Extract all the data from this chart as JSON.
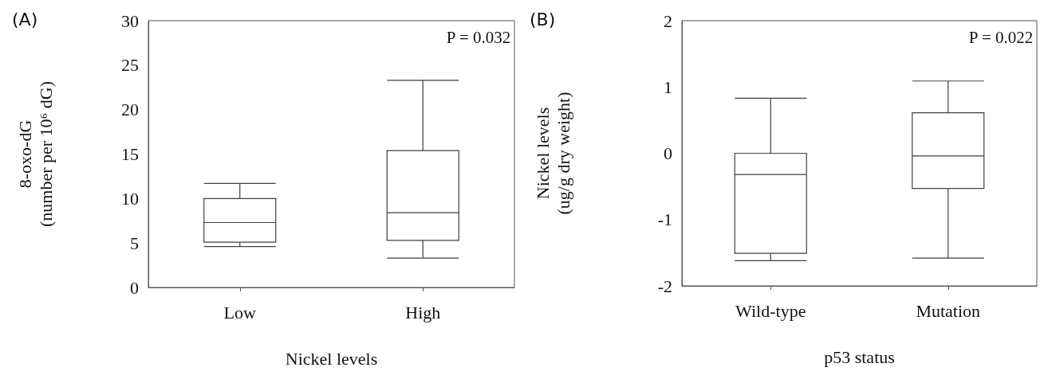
{
  "chart_data": [
    {
      "type": "box",
      "title": "(A)",
      "xlabel": "Nickel levels",
      "ylabel": "8-oxo-dG\n(number per 10⁶ dG)",
      "categories": [
        "Low",
        "High"
      ],
      "color": "#404040",
      "boxes": [
        {
          "low": 4.6,
          "q1": 5.1,
          "median": 7.3,
          "q3": 10,
          "high": 11.7
        },
        {
          "low": 3.3,
          "q1": 5.3,
          "median": 8.4,
          "q3": 15.4,
          "high": 23.3
        }
      ],
      "ylim": [
        0,
        30
      ],
      "yticks": [
        0,
        5,
        10,
        15,
        20,
        25,
        30
      ],
      "grid": false,
      "annotations": [
        "P = 0.032"
      ]
    },
    {
      "type": "box",
      "title": "(B)",
      "xlabel": "p53 status",
      "ylabel": "Nickel levels\n(ug/g dry weight)",
      "categories": [
        "Wild-type",
        "Mutation"
      ],
      "color": "#404040",
      "boxes": [
        {
          "low": -1.62,
          "q1": -1.51,
          "median": -0.32,
          "q3": 0.0,
          "high": 0.83
        },
        {
          "low": -1.58,
          "q1": -0.53,
          "median": -0.04,
          "q3": 0.61,
          "high": 1.09
        }
      ],
      "ylim": [
        -2,
        2
      ],
      "yticks": [
        -2,
        -1,
        0,
        1,
        2
      ],
      "grid": false,
      "annotations": [
        "P = 0.022"
      ]
    }
  ]
}
